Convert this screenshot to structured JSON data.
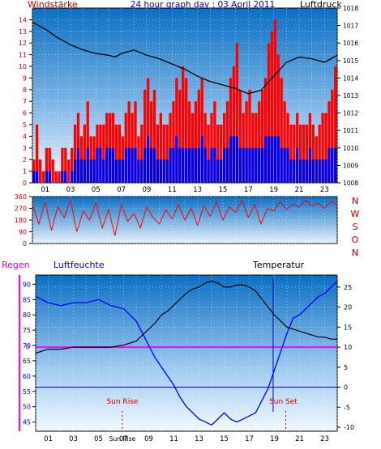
{
  "colors": {
    "wind": "#ff0000",
    "gust_low": "#0000ee",
    "pressure": "#000000",
    "humidity": "#0000ff",
    "temperature": "#000000",
    "rain": "#ff00ff",
    "accent_magenta": "#cc00cc",
    "frame": "#000000",
    "plot_top": "#0a6fc4",
    "plot_bottom": "#f2f8fe"
  },
  "chart_data": [
    {
      "type": "bar",
      "title": "24 hour graph day : 03 April 2011",
      "left_axis_label": "Windstärke",
      "right_axis_label": "Luftdruck",
      "left_ticks": [
        "0",
        "1",
        "2",
        "3",
        "4",
        "5",
        "6",
        "7",
        "8",
        "9",
        "10",
        "11",
        "12",
        "13",
        "14"
      ],
      "right_ticks": [
        "1008",
        "1009",
        "1010",
        "1011",
        "1012",
        "1013",
        "1014",
        "1015",
        "1016",
        "1017",
        "1018"
      ],
      "x_ticks": [
        "01",
        "03",
        "05",
        "07",
        "09",
        "11",
        "13",
        "15",
        "17",
        "19",
        "21",
        "23"
      ],
      "xlim": [
        0,
        24
      ],
      "ylim_left": [
        0,
        15
      ],
      "ylim_right": [
        1008,
        1018
      ],
      "series": [
        {
          "name": "Windstärke",
          "kind": "bars",
          "values": [
            2,
            5,
            2,
            1,
            3,
            3,
            2,
            1,
            1,
            3,
            3,
            2,
            3,
            5,
            6,
            4,
            5,
            7,
            4,
            4,
            5,
            5,
            5,
            6,
            6,
            6,
            5,
            5,
            4,
            6,
            7,
            6,
            7,
            4,
            5,
            8,
            9,
            7,
            8,
            5,
            6,
            5,
            5,
            6,
            7,
            9,
            8,
            10,
            9,
            7,
            6,
            7,
            8,
            9,
            6,
            5,
            6,
            7,
            5,
            5,
            6,
            7,
            9,
            10,
            12,
            8,
            6,
            7,
            8,
            6,
            6,
            7,
            8,
            9,
            12,
            13,
            14,
            11,
            9,
            7,
            6,
            5,
            5,
            6,
            5,
            5,
            5,
            6,
            5,
            4,
            5,
            6,
            6,
            7,
            8,
            10
          ]
        },
        {
          "name": "",
          "kind": "bars",
          "values": [
            1,
            1,
            0,
            0,
            1,
            1,
            0,
            0,
            0,
            1,
            1,
            0,
            1,
            2,
            3,
            2,
            2,
            3,
            2,
            2,
            3,
            3,
            2,
            3,
            3,
            3,
            2,
            2,
            2,
            3,
            3,
            3,
            3,
            2,
            2,
            3,
            4,
            3,
            3,
            2,
            2,
            2,
            2,
            3,
            3,
            4,
            3,
            3,
            3,
            3,
            3,
            3,
            3,
            4,
            3,
            2,
            3,
            3,
            2,
            2,
            3,
            3,
            4,
            4,
            4,
            3,
            3,
            3,
            3,
            3,
            3,
            3,
            3,
            4,
            4,
            4,
            4,
            4,
            3,
            3,
            3,
            2,
            2,
            3,
            2,
            2,
            2,
            3,
            2,
            2,
            2,
            2,
            2,
            3,
            3,
            3
          ]
        },
        {
          "name": "Luftdruck",
          "kind": "line",
          "x": [
            0,
            1,
            2,
            3,
            4,
            5,
            6,
            6.5,
            7,
            8,
            9,
            10,
            11,
            12,
            13,
            14,
            15,
            16,
            17,
            18,
            19,
            20,
            21,
            22,
            23,
            24
          ],
          "values": [
            1017.2,
            1016.8,
            1016.3,
            1015.9,
            1015.6,
            1015.4,
            1015.3,
            1015.2,
            1015.4,
            1015.6,
            1015.3,
            1015.1,
            1014.8,
            1014.5,
            1014.1,
            1013.8,
            1013.6,
            1013.4,
            1013.1,
            1013.3,
            1014.1,
            1014.9,
            1015.2,
            1015.1,
            1014.9,
            1015.3
          ]
        }
      ]
    },
    {
      "type": "line",
      "title": "",
      "right_labels": [
        "N",
        "W",
        "S",
        "O",
        "N"
      ],
      "left_ticks": [
        "0",
        "90",
        "180",
        "270",
        "360"
      ],
      "xlim": [
        0,
        24
      ],
      "ylim": [
        0,
        360
      ],
      "series": [
        {
          "name": "Windrichtung",
          "x": [
            0,
            0.5,
            1,
            1.5,
            2,
            2.5,
            3,
            3.5,
            4,
            4.5,
            5,
            5.5,
            6,
            6.5,
            7,
            7.5,
            8,
            8.5,
            9,
            9.5,
            10,
            10.5,
            11,
            11.5,
            12,
            12.5,
            13,
            13.5,
            14,
            14.5,
            15,
            15.5,
            16,
            16.5,
            17,
            17.5,
            18,
            18.5,
            19,
            19.5,
            20,
            20.5,
            21,
            21.5,
            22,
            22.5,
            23,
            23.5,
            24
          ],
          "values": [
            300,
            150,
            320,
            100,
            280,
            200,
            330,
            90,
            250,
            180,
            310,
            120,
            260,
            60,
            300,
            170,
            230,
            120,
            280,
            200,
            150,
            260,
            190,
            300,
            180,
            270,
            140,
            290,
            210,
            320,
            180,
            280,
            240,
            330,
            200,
            300,
            150,
            270,
            250,
            320,
            260,
            300,
            280,
            330,
            290,
            310,
            270,
            320,
            300
          ]
        }
      ]
    },
    {
      "type": "line",
      "title": "",
      "rain_label": "Regen",
      "humidity_label": "Luftfeuchte",
      "temperature_label": "Temperatur",
      "rain_value": "0",
      "left_ticks": [
        "45",
        "50",
        "55",
        "60",
        "65",
        "70",
        "75",
        "80",
        "85",
        "90"
      ],
      "right_ticks": [
        "-10",
        "-5",
        "0",
        "5",
        "10",
        "15",
        "20",
        "25"
      ],
      "x_ticks": [
        "01",
        "03",
        "05",
        "07",
        "09",
        "11",
        "13",
        "15",
        "17",
        "19",
        "21",
        "23"
      ],
      "xlim": [
        0,
        24
      ],
      "ylim_left": [
        42,
        93
      ],
      "ylim_right": [
        -11,
        28
      ],
      "sunrise_label": "Sun Rise",
      "sunset_label": "Sun Set",
      "sunrise_tick": "Sun Rise",
      "sunrise_hour": 6.9,
      "sunset_hour": 19.9,
      "marker_hour": 18.9,
      "series": [
        {
          "name": "Luftfeuchte",
          "x": [
            0,
            1,
            2,
            3,
            4,
            5,
            6,
            7,
            7.5,
            8,
            8.5,
            9,
            9.5,
            10,
            10.5,
            11,
            11.5,
            12,
            12.5,
            13,
            13.5,
            14,
            14.5,
            15,
            15.5,
            16,
            16.5,
            17,
            17.5,
            18,
            18.5,
            19,
            19.5,
            20,
            20.5,
            21,
            21.5,
            22,
            22.5,
            23,
            23.5,
            24
          ],
          "values": [
            86,
            84,
            83,
            84,
            84,
            85,
            83,
            82,
            80,
            78,
            74,
            70,
            66,
            63,
            60,
            57,
            53,
            50,
            48,
            46,
            45,
            44,
            46,
            48,
            46,
            45,
            46,
            47,
            48,
            52,
            56,
            62,
            68,
            74,
            79,
            80,
            82,
            84,
            86,
            87,
            89,
            91
          ]
        },
        {
          "name": "Temperatur",
          "x": [
            0,
            1,
            2,
            3,
            4,
            5,
            6,
            7,
            7.5,
            8,
            8.5,
            9,
            9.5,
            10,
            10.5,
            11,
            11.5,
            12,
            12.5,
            13,
            13.5,
            14,
            14.5,
            15,
            15.5,
            16,
            16.5,
            17,
            17.5,
            18,
            18.5,
            19,
            19.5,
            20,
            20.5,
            21,
            21.5,
            22,
            22.5,
            23,
            23.5,
            24
          ],
          "values": [
            8.5,
            9.5,
            9.5,
            10,
            10,
            10,
            10,
            10.5,
            11,
            11.5,
            13,
            14.5,
            16,
            18,
            19,
            20.5,
            22,
            23.5,
            24.5,
            25,
            26,
            26.5,
            26,
            25,
            25,
            25.5,
            25.5,
            25,
            24,
            22,
            20,
            18,
            16.5,
            15,
            14.5,
            14,
            13.5,
            13,
            12.5,
            12.5,
            12,
            12
          ]
        }
      ]
    }
  ]
}
